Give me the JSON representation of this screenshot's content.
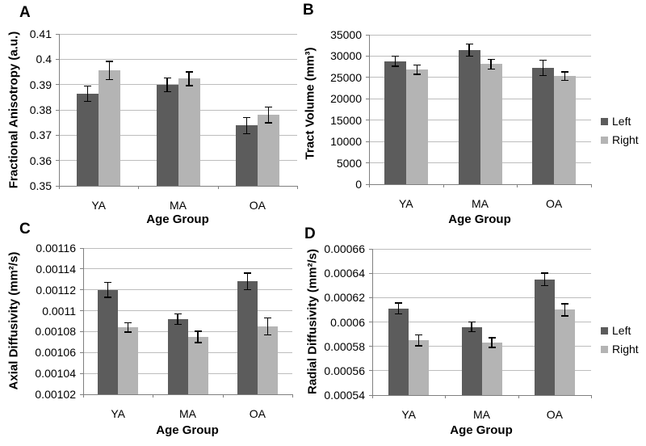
{
  "figure": {
    "description": "Four-panel grouped bar chart figure comparing Left vs Right hemisphere tract measures across age groups",
    "panels": [
      "A",
      "B",
      "C",
      "D"
    ]
  },
  "colors": {
    "left_bar": "#5c5c5c",
    "right_bar": "#b4b4b4",
    "gridline": "#bdbdbd",
    "axis": "#808080",
    "error_bar": "#000000",
    "background": "#ffffff",
    "text": "#000000"
  },
  "chart_data": [
    {
      "panel": "A",
      "type": "bar",
      "title": "",
      "xlabel": "Age Group",
      "ylabel": "Fractional Anisotropy (a.u.)",
      "categories": [
        "YA",
        "MA",
        "OA"
      ],
      "ylim": [
        0.35,
        0.41
      ],
      "yticks": [
        0.41,
        0.4,
        0.39,
        0.38,
        0.37,
        0.36,
        0.35
      ],
      "ytick_labels": [
        "0.41",
        "0.4",
        "0.39",
        "0.38",
        "0.37",
        "0.36",
        "0.35"
      ],
      "grid": true,
      "legend": false,
      "error_bars": true,
      "series": [
        {
          "name": "Left",
          "color": "#5c5c5c",
          "values": [
            0.3864,
            0.3899,
            0.3738
          ],
          "errors": [
            0.003,
            0.0027,
            0.0032
          ]
        },
        {
          "name": "Right",
          "color": "#b4b4b4",
          "values": [
            0.3956,
            0.3923,
            0.378
          ],
          "errors": [
            0.0036,
            0.0027,
            0.0031
          ]
        }
      ]
    },
    {
      "panel": "B",
      "type": "bar",
      "title": "",
      "xlabel": "Age Group",
      "ylabel": "Tract Volume (mm³)",
      "categories": [
        "YA",
        "MA",
        "OA"
      ],
      "ylim": [
        0,
        35000
      ],
      "yticks": [
        35000,
        30000,
        25000,
        20000,
        15000,
        10000,
        5000,
        0
      ],
      "ytick_labels": [
        "35000",
        "30000",
        "25000",
        "20000",
        "15000",
        "10000",
        "5000",
        "0"
      ],
      "grid": true,
      "legend": true,
      "legend_position": "right",
      "error_bars": true,
      "series": [
        {
          "name": "Left",
          "color": "#5c5c5c",
          "values": [
            28800,
            31400,
            27200
          ],
          "errors": [
            1200,
            1400,
            1800
          ]
        },
        {
          "name": "Right",
          "color": "#b4b4b4",
          "values": [
            26800,
            28100,
            25300
          ],
          "errors": [
            1100,
            1100,
            1000
          ]
        }
      ]
    },
    {
      "panel": "C",
      "type": "bar",
      "title": "",
      "xlabel": "Age Group",
      "ylabel": "Axial Diffusivity (mm²/s)",
      "categories": [
        "YA",
        "MA",
        "OA"
      ],
      "ylim": [
        0.00102,
        0.00116
      ],
      "yticks": [
        0.00116,
        0.00114,
        0.00112,
        0.0011,
        0.00108,
        0.00106,
        0.00104,
        0.00102
      ],
      "ytick_labels": [
        "0.00116",
        "0.00114",
        "0.00112",
        "0.0011",
        "0.00108",
        "0.00106",
        "0.00104",
        "0.00102"
      ],
      "grid": true,
      "legend": false,
      "error_bars": true,
      "series": [
        {
          "name": "Left",
          "color": "#5c5c5c",
          "values": [
            0.00112,
            0.001092,
            0.001128
          ],
          "errors": [
            7e-06,
            5e-06,
            8e-06
          ]
        },
        {
          "name": "Right",
          "color": "#b4b4b4",
          "values": [
            0.001084,
            0.001075,
            0.001085
          ],
          "errors": [
            4.5e-06,
            5.5e-06,
            8e-06
          ]
        }
      ]
    },
    {
      "panel": "D",
      "type": "bar",
      "title": "",
      "xlabel": "Age Group",
      "ylabel": "Radial Diffusivity (mm²/s)",
      "categories": [
        "YA",
        "MA",
        "OA"
      ],
      "ylim": [
        0.00054,
        0.00066
      ],
      "yticks": [
        0.00066,
        0.00064,
        0.00062,
        0.0006,
        0.00058,
        0.00056,
        0.00054
      ],
      "ytick_labels": [
        "0.00066",
        "0.00064",
        "0.00062",
        "0.0006",
        "0.00058",
        "0.00056",
        "0.00054"
      ],
      "grid": true,
      "legend": true,
      "legend_position": "right",
      "error_bars": true,
      "series": [
        {
          "name": "Left",
          "color": "#5c5c5c",
          "values": [
            0.000611,
            0.000596,
            0.000635
          ],
          "errors": [
            4.5e-06,
            4e-06,
            5e-06
          ]
        },
        {
          "name": "Right",
          "color": "#b4b4b4",
          "values": [
            0.000585,
            0.000583,
            0.00061
          ],
          "errors": [
            4.5e-06,
            4e-06,
            5e-06
          ]
        }
      ]
    }
  ]
}
